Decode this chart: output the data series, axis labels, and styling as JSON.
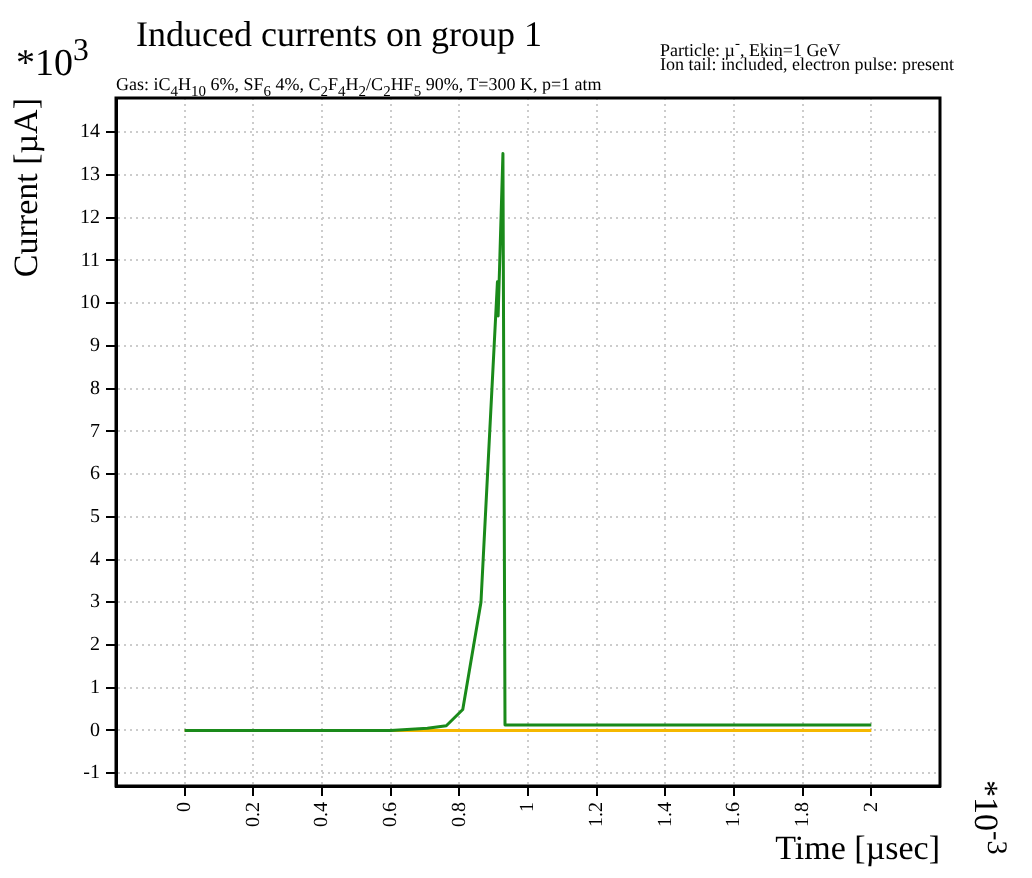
{
  "chart_data": {
    "type": "line",
    "title": "Induced currents on group 1",
    "subtitle": "Gas: iC$_{4}$H$_{10}$ 6%, SF$_{6}$ 4%, C$_{2}$F$_{4}$H$_{2}$/C$_{2}$HF$_{5}$ 90%, T=300 K, p=1 atm",
    "xlabel": "Time [µsec]",
    "ylabel": "Current [µA]",
    "annotations": [
      "Particle: µ$^{-}$, Ekin=1 GeV",
      "Ion tail: included, electron pulse: present",
      "*10$^{3}$",
      "*10$^{-3}$"
    ],
    "series": [
      {
        "color": "#1a8a1a",
        "x": [
          0,
          0.6,
          0.707,
          0.762,
          0.81,
          0.863,
          0.911,
          0.913,
          0.927,
          0.933,
          2
        ],
        "values": [
          0,
          0,
          0.05,
          0.11,
          0.49,
          3.0,
          10.5,
          9.7,
          13.5,
          0.13,
          0.13
        ]
      },
      {
        "color": "#f5b800",
        "x": [
          0,
          2
        ],
        "values": [
          0,
          0
        ]
      }
    ],
    "xlim": [
      -0.2,
      2.2
    ],
    "xticks": [
      0,
      0.2,
      0.4,
      0.6,
      0.8,
      1,
      1.2,
      1.4,
      1.6,
      1.8,
      2
    ],
    "ylim": [
      -1.3,
      14.8
    ],
    "yticks": [
      -1,
      0,
      1,
      2,
      3,
      4,
      5,
      6,
      7,
      8,
      9,
      10,
      11,
      12,
      13,
      14
    ],
    "grid": true,
    "line_style": "solid"
  }
}
